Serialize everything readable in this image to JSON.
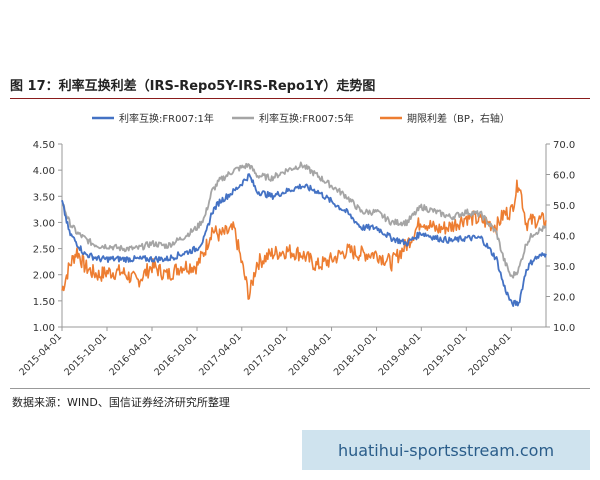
{
  "figure": {
    "title": "图 17：利率互换利差（IRS-Repo5Y-IRS-Repo1Y）走势图",
    "source": "数据来源：WIND、国信证券经济研究所整理",
    "watermark": "huatihui-sportsstream.com"
  },
  "chart_data": {
    "type": "line",
    "x_tick_labels": [
      "2015-04-01",
      "2015-10-01",
      "2016-04-01",
      "2016-10-01",
      "2017-04-01",
      "2017-10-01",
      "2018-04-01",
      "2018-10-01",
      "2019-04-01",
      "2019-10-01",
      "2020-04-01"
    ],
    "x_domain": [
      "2015-04-01",
      "2020-08-20"
    ],
    "left_axis": {
      "ylim": [
        1.0,
        4.5
      ],
      "ticks": [
        "1.00",
        "1.50",
        "2.00",
        "2.50",
        "3.00",
        "3.50",
        "4.00",
        "4.50"
      ]
    },
    "right_axis": {
      "ylim": [
        10.0,
        70.0
      ],
      "ticks": [
        "10.0",
        "20.0",
        "30.0",
        "40.0",
        "50.0",
        "60.0",
        "70.0"
      ]
    },
    "legend_position": "top",
    "series": [
      {
        "name": "利率互换:FR007:1年",
        "color": "#4472c4",
        "axis": "left",
        "points": [
          [
            "2015-04-01",
            3.4
          ],
          [
            "2015-05-01",
            2.8
          ],
          [
            "2015-06-01",
            2.6
          ],
          [
            "2015-07-01",
            2.4
          ],
          [
            "2015-08-01",
            2.35
          ],
          [
            "2015-09-01",
            2.3
          ],
          [
            "2015-10-01",
            2.3
          ],
          [
            "2015-12-01",
            2.3
          ],
          [
            "2016-02-01",
            2.3
          ],
          [
            "2016-04-01",
            2.3
          ],
          [
            "2016-06-01",
            2.3
          ],
          [
            "2016-08-01",
            2.4
          ],
          [
            "2016-10-01",
            2.5
          ],
          [
            "2016-11-01",
            2.7
          ],
          [
            "2016-12-01",
            3.2
          ],
          [
            "2017-01-01",
            3.4
          ],
          [
            "2017-03-01",
            3.6
          ],
          [
            "2017-05-01",
            3.9
          ],
          [
            "2017-06-01",
            3.6
          ],
          [
            "2017-08-01",
            3.5
          ],
          [
            "2017-10-01",
            3.6
          ],
          [
            "2017-12-01",
            3.7
          ],
          [
            "2018-02-01",
            3.6
          ],
          [
            "2018-04-01",
            3.4
          ],
          [
            "2018-06-01",
            3.2
          ],
          [
            "2018-08-01",
            2.9
          ],
          [
            "2018-10-01",
            2.9
          ],
          [
            "2018-12-01",
            2.7
          ],
          [
            "2019-02-01",
            2.6
          ],
          [
            "2019-04-01",
            2.8
          ],
          [
            "2019-06-01",
            2.7
          ],
          [
            "2019-08-01",
            2.65
          ],
          [
            "2019-10-01",
            2.7
          ],
          [
            "2019-12-01",
            2.7
          ],
          [
            "2020-02-01",
            2.3
          ],
          [
            "2020-03-01",
            1.8
          ],
          [
            "2020-04-01",
            1.45
          ],
          [
            "2020-05-01",
            1.45
          ],
          [
            "2020-06-01",
            2.1
          ],
          [
            "2020-07-01",
            2.3
          ],
          [
            "2020-08-20",
            2.4
          ]
        ]
      },
      {
        "name": "利率互换:FR007:5年",
        "color": "#a5a5a5",
        "axis": "left",
        "points": [
          [
            "2015-04-01",
            3.4
          ],
          [
            "2015-05-01",
            3.0
          ],
          [
            "2015-06-01",
            2.8
          ],
          [
            "2015-07-01",
            2.7
          ],
          [
            "2015-08-01",
            2.6
          ],
          [
            "2015-09-01",
            2.55
          ],
          [
            "2015-10-01",
            2.55
          ],
          [
            "2015-12-01",
            2.5
          ],
          [
            "2016-02-01",
            2.5
          ],
          [
            "2016-04-01",
            2.6
          ],
          [
            "2016-06-01",
            2.55
          ],
          [
            "2016-08-01",
            2.7
          ],
          [
            "2016-10-01",
            2.9
          ],
          [
            "2016-11-01",
            3.1
          ],
          [
            "2016-12-01",
            3.6
          ],
          [
            "2017-01-01",
            3.8
          ],
          [
            "2017-03-01",
            4.0
          ],
          [
            "2017-05-01",
            4.1
          ],
          [
            "2017-06-01",
            3.9
          ],
          [
            "2017-08-01",
            3.85
          ],
          [
            "2017-10-01",
            4.0
          ],
          [
            "2017-12-01",
            4.1
          ],
          [
            "2018-02-01",
            3.9
          ],
          [
            "2018-04-01",
            3.7
          ],
          [
            "2018-06-01",
            3.5
          ],
          [
            "2018-08-01",
            3.2
          ],
          [
            "2018-10-01",
            3.2
          ],
          [
            "2018-12-01",
            3.0
          ],
          [
            "2019-02-01",
            3.0
          ],
          [
            "2019-04-01",
            3.3
          ],
          [
            "2019-06-01",
            3.2
          ],
          [
            "2019-08-01",
            3.1
          ],
          [
            "2019-10-01",
            3.2
          ],
          [
            "2019-12-01",
            3.15
          ],
          [
            "2020-02-01",
            2.8
          ],
          [
            "2020-03-01",
            2.3
          ],
          [
            "2020-04-01",
            1.95
          ],
          [
            "2020-05-01",
            2.1
          ],
          [
            "2020-06-01",
            2.6
          ],
          [
            "2020-07-01",
            2.8
          ],
          [
            "2020-08-20",
            2.9
          ]
        ]
      },
      {
        "name": "期限利差（BP，右轴）",
        "color": "#ed7d31",
        "axis": "right",
        "points": [
          [
            "2015-04-01",
            22.0
          ],
          [
            "2015-05-01",
            30.0
          ],
          [
            "2015-06-01",
            35.0
          ],
          [
            "2015-07-01",
            30.0
          ],
          [
            "2015-08-01",
            28.0
          ],
          [
            "2015-09-01",
            27.0
          ],
          [
            "2015-10-01",
            28.0
          ],
          [
            "2015-12-01",
            28.0
          ],
          [
            "2016-02-01",
            25.0
          ],
          [
            "2016-04-01",
            30.0
          ],
          [
            "2016-06-01",
            27.0
          ],
          [
            "2016-08-01",
            30.0
          ],
          [
            "2016-10-01",
            30.0
          ],
          [
            "2016-11-01",
            35.0
          ],
          [
            "2016-12-01",
            42.0
          ],
          [
            "2017-01-01",
            40.0
          ],
          [
            "2017-03-01",
            42.0
          ],
          [
            "2017-05-01",
            20.0
          ],
          [
            "2017-06-01",
            31.0
          ],
          [
            "2017-08-01",
            34.0
          ],
          [
            "2017-10-01",
            35.0
          ],
          [
            "2017-12-01",
            34.0
          ],
          [
            "2018-02-01",
            30.0
          ],
          [
            "2018-04-01",
            32.0
          ],
          [
            "2018-06-01",
            35.0
          ],
          [
            "2018-08-01",
            34.0
          ],
          [
            "2018-10-01",
            34.0
          ],
          [
            "2018-12-01",
            31.0
          ],
          [
            "2019-02-01",
            37.0
          ],
          [
            "2019-04-01",
            45.0
          ],
          [
            "2019-06-01",
            42.0
          ],
          [
            "2019-08-01",
            43.0
          ],
          [
            "2019-10-01",
            46.0
          ],
          [
            "2019-12-01",
            45.0
          ],
          [
            "2020-02-01",
            43.0
          ],
          [
            "2020-03-01",
            47.0
          ],
          [
            "2020-04-01",
            48.0
          ],
          [
            "2020-05-01",
            58.0
          ],
          [
            "2020-06-01",
            44.0
          ],
          [
            "2020-07-01",
            45.0
          ],
          [
            "2020-08-20",
            45.0
          ]
        ]
      }
    ]
  }
}
